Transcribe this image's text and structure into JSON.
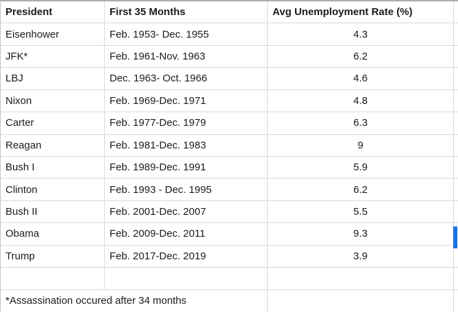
{
  "table": {
    "headers": {
      "president": "President",
      "period": "First 35 Months",
      "rate": "Avg Unemployment Rate (%)"
    },
    "rows": [
      {
        "president": "Eisenhower",
        "period": "Feb. 1953- Dec. 1955",
        "rate": "4.3"
      },
      {
        "president": "JFK*",
        "period": "Feb. 1961-Nov. 1963",
        "rate": "6.2"
      },
      {
        "president": "LBJ",
        "period": "Dec. 1963- Oct. 1966",
        "rate": "4.6"
      },
      {
        "president": "Nixon",
        "period": "Feb. 1969-Dec. 1971",
        "rate": "4.8"
      },
      {
        "president": "Carter",
        "period": "Feb. 1977-Dec. 1979",
        "rate": "6.3"
      },
      {
        "president": "Reagan",
        "period": "Feb. 1981-Dec. 1983",
        "rate": "9"
      },
      {
        "president": "Bush I",
        "period": "Feb. 1989-Dec. 1991",
        "rate": "5.9"
      },
      {
        "president": "Clinton",
        "period": "Feb. 1993 - Dec. 1995",
        "rate": "6.2"
      },
      {
        "president": "Bush II",
        "period": "Feb. 2001-Dec. 2007",
        "rate": "5.5"
      },
      {
        "president": "Obama",
        "period": "Feb. 2009-Dec. 2011",
        "rate": "9.3"
      },
      {
        "president": "Trump",
        "period": "Feb. 2017-Dec. 2019",
        "rate": "3.9"
      }
    ],
    "footnote": "*Assassination occured after 34 months"
  },
  "colors": {
    "background": "#ffffff",
    "text": "#1a1a1a",
    "gridline": "#d9d9d9",
    "outer_border": "#ababab",
    "left_border": "#c4c4c4",
    "selection_handle": "#1a73e8"
  }
}
